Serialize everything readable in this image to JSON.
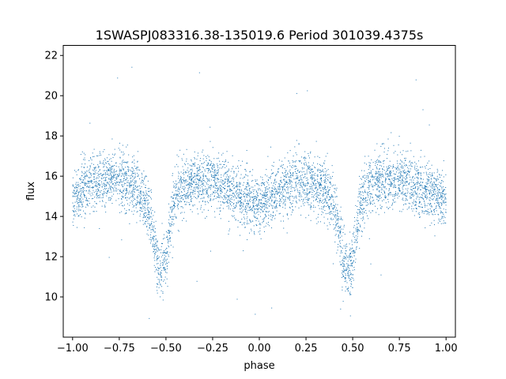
{
  "chart_data": {
    "type": "scatter",
    "title": "1SWASPJ083316.38-135019.6 Period 301039.4375s",
    "xlabel": "phase",
    "ylabel": "flux",
    "xlim": [
      -1.05,
      1.05
    ],
    "ylim": [
      8.0,
      22.5
    ],
    "x_ticks": [
      -1.0,
      -0.75,
      -0.5,
      -0.25,
      0.0,
      0.25,
      0.5,
      0.75,
      1.0
    ],
    "x_tick_labels": [
      "−1.00",
      "−0.75",
      "−0.50",
      "−0.25",
      "0.00",
      "0.25",
      "0.50",
      "0.75",
      "1.00"
    ],
    "y_ticks": [
      10,
      12,
      14,
      16,
      18,
      20,
      22
    ],
    "y_tick_labels": [
      "10",
      "12",
      "14",
      "16",
      "18",
      "20",
      "22"
    ],
    "grid": false,
    "marker_color": "#1f77b4",
    "light_curve_profile": {
      "phase": [
        -1.0,
        -0.95,
        -0.9,
        -0.85,
        -0.8,
        -0.75,
        -0.7,
        -0.65,
        -0.6,
        -0.57,
        -0.55,
        -0.53,
        -0.51,
        -0.49,
        -0.47,
        -0.45,
        -0.4,
        -0.35,
        -0.3,
        -0.25,
        -0.2,
        -0.15,
        -0.1,
        -0.05,
        0.0,
        0.05,
        0.1,
        0.15,
        0.2,
        0.25,
        0.3,
        0.35,
        0.4,
        0.43,
        0.45,
        0.47,
        0.49,
        0.51,
        0.53,
        0.55,
        0.6,
        0.65,
        0.7,
        0.75,
        0.8,
        0.85,
        0.9,
        0.95,
        1.0
      ],
      "mean_flux": [
        14.9,
        15.3,
        15.6,
        15.8,
        15.9,
        15.8,
        15.6,
        15.3,
        14.6,
        13.3,
        11.8,
        11.3,
        11.5,
        12.4,
        14.0,
        15.0,
        15.5,
        15.7,
        15.8,
        15.8,
        15.6,
        15.3,
        15.0,
        14.7,
        14.6,
        14.9,
        15.3,
        15.6,
        15.8,
        15.8,
        15.6,
        15.3,
        14.6,
        13.3,
        11.8,
        11.3,
        11.5,
        12.4,
        14.0,
        15.0,
        15.5,
        15.8,
        15.9,
        15.9,
        15.7,
        15.4,
        15.2,
        15.0,
        14.9
      ],
      "scatter_sigma": 0.7
    }
  }
}
